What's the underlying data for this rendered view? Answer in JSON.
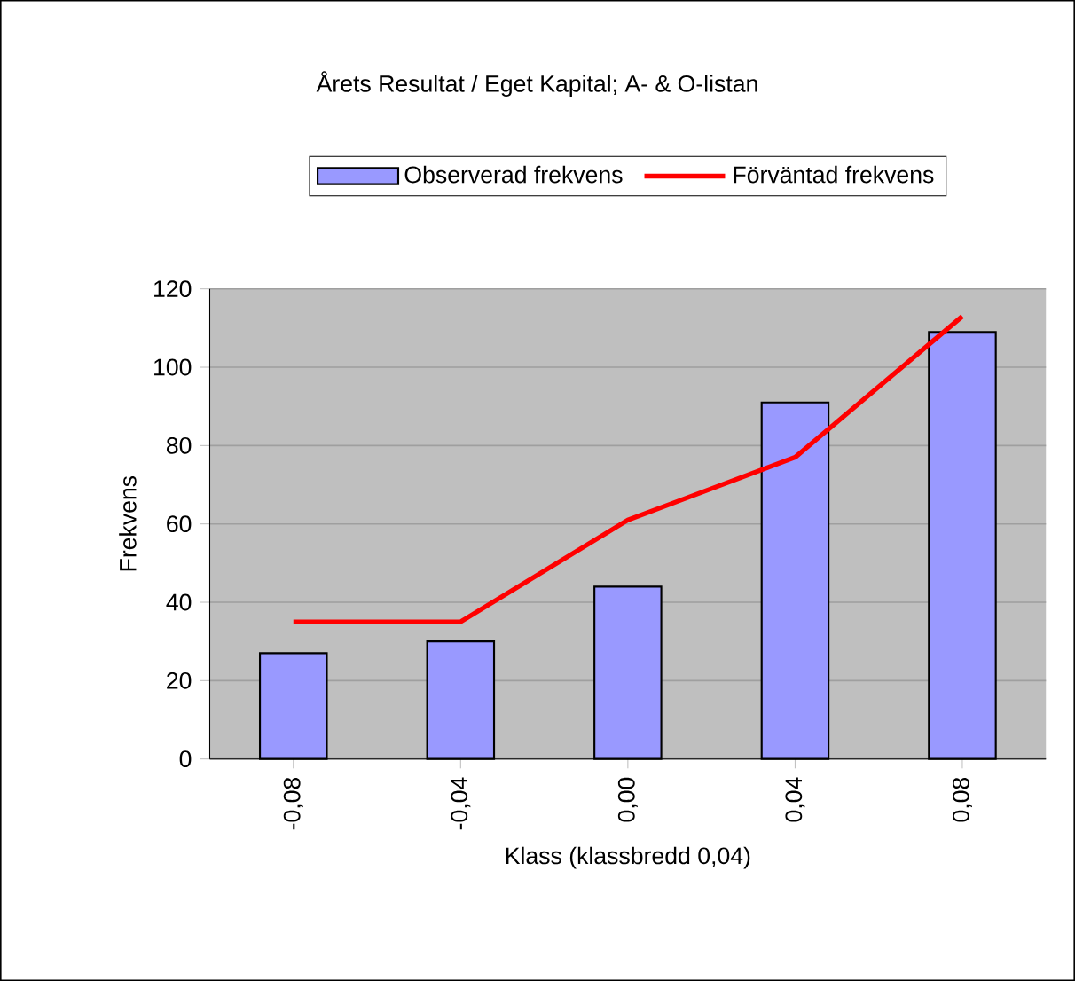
{
  "chart_data": {
    "type": "bar",
    "title": "Årets Resultat / Eget Kapital; A- & O-listan",
    "xlabel": "Klass (klassbredd 0,04)",
    "ylabel": "Frekvens",
    "categories": [
      "-0,08",
      "-0,04",
      "0,00",
      "0,04",
      "0,08"
    ],
    "series": [
      {
        "name": "Observerad frekvens",
        "color": "#9999ff",
        "values": [
          27,
          30,
          44,
          91,
          109
        ]
      },
      {
        "name": "Förväntad frekvens",
        "type": "line",
        "color": "#ff0000",
        "values": [
          35,
          35,
          61,
          77,
          113
        ]
      }
    ],
    "ylim": [
      0,
      120
    ],
    "yticks": [
      0,
      20,
      40,
      60,
      80,
      100,
      120
    ],
    "grid": "y",
    "legend": "top",
    "marker": "none"
  }
}
